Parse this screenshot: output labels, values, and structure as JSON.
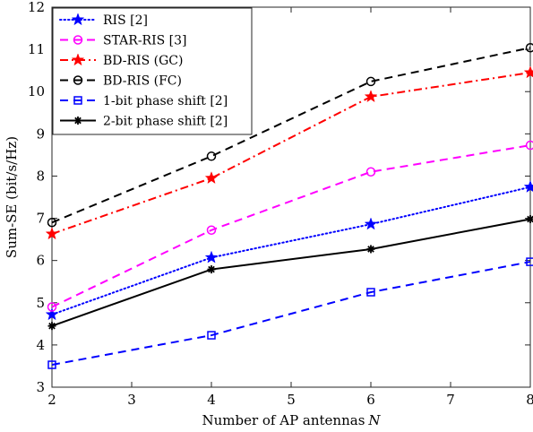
{
  "chart_data": {
    "type": "line",
    "xlabel": "Number of AP antennas",
    "xlabel_var": "N",
    "ylabel": "Sum-SE (bit/s/Hz)",
    "xlim": [
      2,
      8
    ],
    "ylim": [
      3,
      12
    ],
    "xticks": [
      2,
      3,
      4,
      5,
      6,
      7,
      8
    ],
    "yticks": [
      3,
      4,
      5,
      6,
      7,
      8,
      9,
      10,
      11,
      12
    ],
    "x": [
      2,
      4,
      6,
      8
    ],
    "grid": false,
    "legend_placement": "top-left",
    "series": [
      {
        "name": "RIS [2]",
        "values": [
          4.72,
          6.07,
          6.86,
          7.74
        ],
        "color": "#0000ff",
        "dash": "dotted",
        "marker": "star"
      },
      {
        "name": "STAR-RIS [3]",
        "values": [
          4.9,
          6.72,
          8.1,
          8.73
        ],
        "color": "#ff00ff",
        "dash": "dashed",
        "marker": "circle"
      },
      {
        "name": "BD-RIS (GC)",
        "values": [
          6.63,
          7.95,
          9.88,
          10.45
        ],
        "color": "#ff0000",
        "dash": "dashdot",
        "marker": "star"
      },
      {
        "name": "BD-RIS (FC)",
        "values": [
          6.9,
          8.47,
          10.24,
          11.04
        ],
        "color": "#000000",
        "dash": "dashed",
        "marker": "circle"
      },
      {
        "name": "1-bit phase shift [2]",
        "values": [
          3.53,
          4.23,
          5.25,
          5.97
        ],
        "color": "#0000ff",
        "dash": "dashed",
        "marker": "square"
      },
      {
        "name": "2-bit phase shift [2]",
        "values": [
          4.45,
          5.79,
          6.27,
          6.98
        ],
        "color": "#000000",
        "dash": "solid",
        "marker": "asterisk"
      }
    ]
  }
}
